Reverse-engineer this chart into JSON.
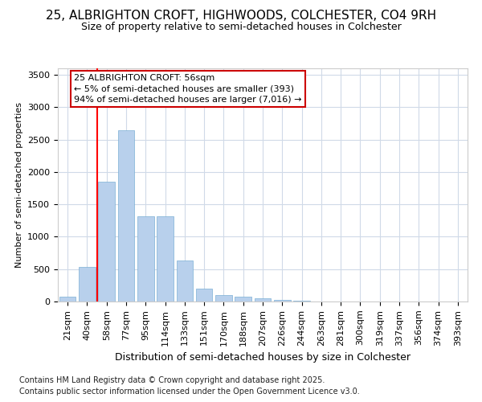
{
  "title_line1": "25, ALBRIGHTON CROFT, HIGHWOODS, COLCHESTER, CO4 9RH",
  "title_line2": "Size of property relative to semi-detached houses in Colchester",
  "xlabel": "Distribution of semi-detached houses by size in Colchester",
  "ylabel": "Number of semi-detached properties",
  "categories": [
    "21sqm",
    "40sqm",
    "58sqm",
    "77sqm",
    "95sqm",
    "114sqm",
    "133sqm",
    "151sqm",
    "170sqm",
    "188sqm",
    "207sqm",
    "226sqm",
    "244sqm",
    "263sqm",
    "281sqm",
    "300sqm",
    "319sqm",
    "337sqm",
    "356sqm",
    "374sqm",
    "393sqm"
  ],
  "values": [
    75,
    530,
    1850,
    2650,
    1320,
    1320,
    630,
    200,
    100,
    75,
    50,
    25,
    10,
    5,
    2,
    1,
    0,
    0,
    0,
    0,
    0
  ],
  "bar_color": "#b8d0ec",
  "bar_edge_color": "#7bafd4",
  "red_line_index": 2,
  "annotation_title": "25 ALBRIGHTON CROFT: 56sqm",
  "annotation_line2": "← 5% of semi-detached houses are smaller (393)",
  "annotation_line3": "94% of semi-detached houses are larger (7,016) →",
  "annotation_box_color": "#ffffff",
  "annotation_box_edge": "#cc0000",
  "ylim": [
    0,
    3600
  ],
  "yticks": [
    0,
    500,
    1000,
    1500,
    2000,
    2500,
    3000,
    3500
  ],
  "footer_line1": "Contains HM Land Registry data © Crown copyright and database right 2025.",
  "footer_line2": "Contains public sector information licensed under the Open Government Licence v3.0.",
  "bg_color": "#ffffff",
  "grid_color": "#d0dae8",
  "title1_fontsize": 11,
  "title2_fontsize": 9,
  "xlabel_fontsize": 9,
  "ylabel_fontsize": 8,
  "tick_fontsize": 8,
  "annotation_fontsize": 8,
  "footer_fontsize": 7
}
